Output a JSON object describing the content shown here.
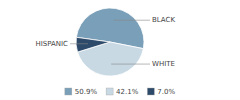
{
  "chart_data": {
    "type": "pie",
    "categories": [
      "BLACK",
      "WHITE",
      "HISPANIC"
    ],
    "values": [
      50.9,
      42.1,
      7.0
    ],
    "value_labels": [
      "50.9%",
      "42.1%",
      "7.0%"
    ],
    "colors": [
      "#7a9fb8",
      "#c8d9e4",
      "#2d4a6a"
    ],
    "legend": "bottom"
  }
}
